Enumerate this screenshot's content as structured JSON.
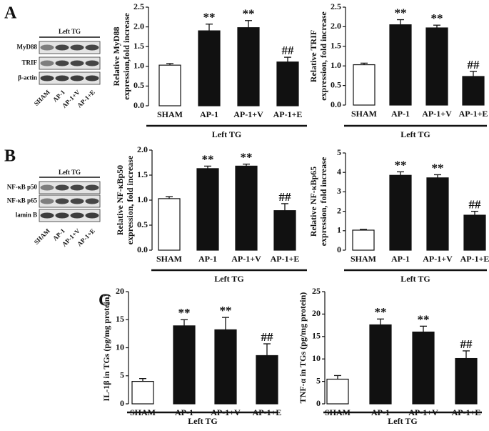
{
  "panel_labels": [
    "A",
    "B",
    "C"
  ],
  "blots": [
    {
      "header": "Left TG",
      "rows": [
        "MyD88",
        "TRIF",
        "β-actin"
      ],
      "lanes": [
        "SHAM",
        "AP-1",
        "AP-1+V",
        "AP-1+E"
      ]
    },
    {
      "header": "Left TG",
      "rows": [
        "NF-κB p50",
        "NF-κB p65",
        "lamin B"
      ],
      "lanes": [
        "SHAM",
        "AP-1",
        "AP-1+V",
        "AP-1+E"
      ]
    }
  ],
  "chart_data": [
    {
      "type": "bar",
      "ylabel": [
        "Relative MyD88",
        "expression,fold increase"
      ],
      "xlabel": "Left TG",
      "categories": [
        "SHAM",
        "AP-1",
        "AP-1+V",
        "AP-1+E"
      ],
      "values": [
        1.03,
        1.9,
        1.98,
        1.11
      ],
      "errors": [
        0.04,
        0.17,
        0.18,
        0.12
      ],
      "bar_labels": [
        null,
        "**",
        "**",
        "##"
      ],
      "colors": [
        "#ffffff",
        "#111111",
        "#111111",
        "#111111"
      ],
      "ylim": [
        0,
        2.5
      ],
      "yticks": [
        {
          "value": 0,
          "label": "0.0"
        },
        {
          "value": 0.5,
          "label": "0.5"
        },
        {
          "value": 1,
          "label": "1.0"
        },
        {
          "value": 1.5,
          "label": "1.5"
        },
        {
          "value": 2,
          "label": "2.0"
        },
        {
          "value": 2.5,
          "label": "2.5"
        }
      ]
    },
    {
      "type": "bar",
      "ylabel": [
        "Relative TRIF",
        "expression, fold increase"
      ],
      "xlabel": "Left TG",
      "categories": [
        "SHAM",
        "AP-1",
        "AP-1+V",
        "AP-1+E"
      ],
      "values": [
        1.03,
        2.05,
        1.97,
        0.73
      ],
      "errors": [
        0.04,
        0.13,
        0.07,
        0.13
      ],
      "bar_labels": [
        null,
        "**",
        "**",
        "##"
      ],
      "colors": [
        "#ffffff",
        "#111111",
        "#111111",
        "#111111"
      ],
      "ylim": [
        0,
        2.5
      ],
      "yticks": [
        {
          "value": 0,
          "label": "0.0"
        },
        {
          "value": 0.5,
          "label": "0.5"
        },
        {
          "value": 1,
          "label": "1.0"
        },
        {
          "value": 1.5,
          "label": "1.5"
        },
        {
          "value": 2,
          "label": "2.0"
        },
        {
          "value": 2.5,
          "label": "2.5"
        }
      ]
    },
    {
      "type": "bar",
      "ylabel": [
        "Relative NF-κBp50",
        "expression, fold increase"
      ],
      "xlabel": "Left TG",
      "categories": [
        "SHAM",
        "AP-1",
        "AP-1+V",
        "AP-1+E"
      ],
      "values": [
        1.03,
        1.63,
        1.68,
        0.79
      ],
      "errors": [
        0.04,
        0.05,
        0.04,
        0.14
      ],
      "bar_labels": [
        null,
        "**",
        "**",
        "##"
      ],
      "colors": [
        "#ffffff",
        "#111111",
        "#111111",
        "#111111"
      ],
      "ylim": [
        0,
        2
      ],
      "yticks": [
        {
          "value": 0,
          "label": "0.0"
        },
        {
          "value": 0.5,
          "label": "0.5"
        },
        {
          "value": 1,
          "label": "1.0"
        },
        {
          "value": 1.5,
          "label": "1.5"
        },
        {
          "value": 2,
          "label": "2.0"
        }
      ]
    },
    {
      "type": "bar",
      "ylabel": [
        "Relative NF-κBp65",
        "expression, fold increase"
      ],
      "xlabel": "Left TG",
      "categories": [
        "SHAM",
        "AP-1",
        "AP-1+V",
        "AP-1+E"
      ],
      "values": [
        1.03,
        3.85,
        3.72,
        1.8
      ],
      "errors": [
        0.04,
        0.18,
        0.16,
        0.2
      ],
      "bar_labels": [
        null,
        "**",
        "**",
        "##"
      ],
      "colors": [
        "#ffffff",
        "#111111",
        "#111111",
        "#111111"
      ],
      "ylim": [
        0,
        5
      ],
      "yticks": [
        0,
        1,
        2,
        3,
        4,
        5
      ]
    },
    {
      "type": "bar",
      "ylabel": [
        "IL-1β in TGs (pg/mg protein)"
      ],
      "xlabel": "Left TG",
      "categories": [
        "SHAM",
        "AP-1",
        "AP-1+V",
        "AP-1+E"
      ],
      "values": [
        4.0,
        13.9,
        13.2,
        8.6
      ],
      "errors": [
        0.5,
        1.1,
        2.2,
        2.1
      ],
      "bar_labels": [
        null,
        "**",
        "**",
        "##"
      ],
      "colors": [
        "#ffffff",
        "#111111",
        "#111111",
        "#111111"
      ],
      "ylim": [
        0,
        20
      ],
      "yticks": [
        0,
        5,
        10,
        15,
        20
      ]
    },
    {
      "type": "bar",
      "ylabel": [
        "TNF-α in TGs (pg/mg protein)"
      ],
      "xlabel": "Left TG",
      "categories": [
        "SHAM",
        "AP-1",
        "AP-1+V",
        "AP-1+E"
      ],
      "values": [
        5.5,
        17.6,
        16.0,
        10.1
      ],
      "errors": [
        0.8,
        1.3,
        1.3,
        1.7
      ],
      "bar_labels": [
        null,
        "**",
        "**",
        "##"
      ],
      "colors": [
        "#ffffff",
        "#111111",
        "#111111",
        "#111111"
      ],
      "ylim": [
        0,
        25
      ],
      "yticks": [
        0,
        5,
        10,
        15,
        20,
        25
      ]
    }
  ]
}
